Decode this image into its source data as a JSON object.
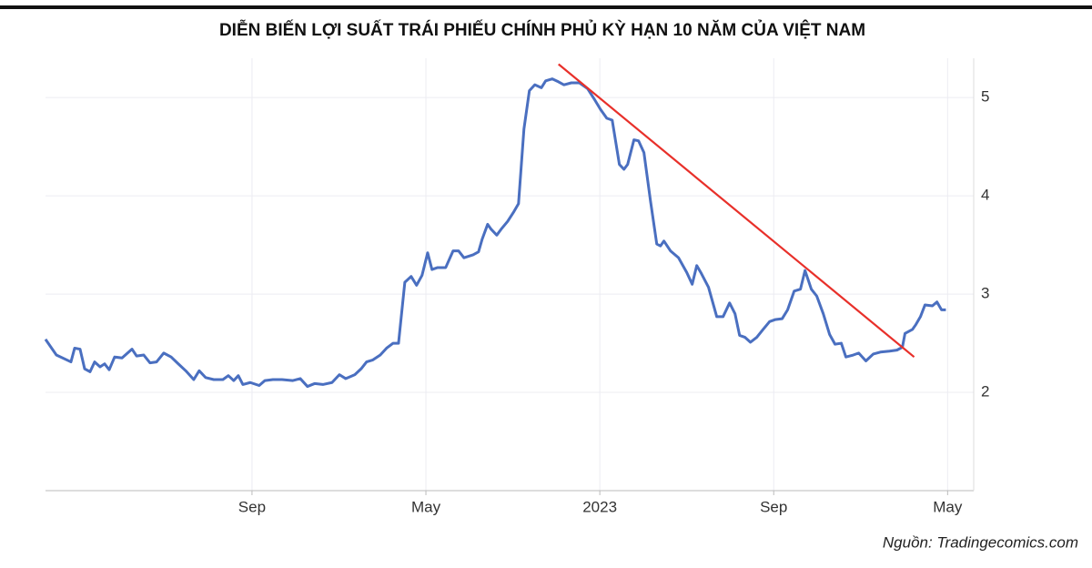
{
  "chart_data": {
    "type": "line",
    "title": "DIỄN BIẾN LỢI SUẤT TRÁI PHIẾU CHÍNH PHỦ KỲ HẠN 10 NĂM CỦA VIỆT NAM",
    "source": "Nguồn: Tradingecomics.com",
    "x": [
      -9.5,
      -9.0,
      -8.33,
      -8.16,
      -7.91,
      -7.7,
      -7.45,
      -7.24,
      -6.99,
      -6.78,
      -6.57,
      -6.32,
      -5.98,
      -5.52,
      -5.31,
      -4.98,
      -4.69,
      -4.39,
      -4.06,
      -3.72,
      -3.39,
      -3.05,
      -2.68,
      -2.43,
      -2.13,
      -1.76,
      -1.34,
      -1.09,
      -0.84,
      -0.63,
      -0.42,
      -0.08,
      0.33,
      0.59,
      0.96,
      1.38,
      1.88,
      2.22,
      2.55,
      2.89,
      3.26,
      3.68,
      4.02,
      4.31,
      4.73,
      5.02,
      5.27,
      5.56,
      5.9,
      6.19,
      6.49,
      6.74,
      7.03,
      7.32,
      7.57,
      7.82,
      8.08,
      8.28,
      8.54,
      8.91,
      9.25,
      9.5,
      9.75,
      10.17,
      10.42,
      10.59,
      10.84,
      11.0,
      11.26,
      11.46,
      11.76,
      12.05,
      12.26,
      12.51,
      12.76,
      13.01,
      13.31,
      13.51,
      13.81,
      14.1,
      14.35,
      14.69,
      15.06,
      15.44,
      15.73,
      16.03,
      16.32,
      16.57,
      16.9,
      17.11,
      17.28,
      17.57,
      17.78,
      18.03,
      18.33,
      18.62,
      18.79,
      18.95,
      19.25,
      19.62,
      20.0,
      20.25,
      20.46,
      20.67,
      21.0,
      21.38,
      21.67,
      21.97,
      22.22,
      22.43,
      22.68,
      22.93,
      23.22,
      23.51,
      23.81,
      24.06,
      24.39,
      24.64,
      24.94,
      25.23,
      25.44,
      25.73,
      25.98,
      26.28,
      26.57,
      26.82,
      27.11,
      27.32,
      27.66,
      27.91,
      28.24,
      28.58,
      28.91,
      29.33,
      29.67,
      29.92,
      30.04,
      30.38,
      30.54,
      30.75,
      30.96,
      31.3,
      31.51,
      31.72,
      31.92
    ],
    "series": [
      {
        "color": "#4a6fc0",
        "values": [
          2.54,
          2.38,
          2.31,
          2.45,
          2.44,
          2.24,
          2.21,
          2.31,
          2.26,
          2.29,
          2.23,
          2.36,
          2.35,
          2.44,
          2.37,
          2.38,
          2.3,
          2.31,
          2.4,
          2.36,
          2.29,
          2.22,
          2.13,
          2.22,
          2.15,
          2.13,
          2.13,
          2.17,
          2.12,
          2.17,
          2.08,
          2.1,
          2.07,
          2.12,
          2.13,
          2.13,
          2.12,
          2.14,
          2.06,
          2.09,
          2.08,
          2.1,
          2.18,
          2.14,
          2.18,
          2.24,
          2.31,
          2.33,
          2.38,
          2.45,
          2.5,
          2.5,
          3.12,
          3.18,
          3.09,
          3.19,
          3.42,
          3.25,
          3.27,
          3.27,
          3.44,
          3.44,
          3.37,
          3.4,
          3.43,
          3.56,
          3.71,
          3.66,
          3.6,
          3.66,
          3.74,
          3.84,
          3.92,
          4.68,
          5.07,
          5.13,
          5.1,
          5.17,
          5.19,
          5.16,
          5.13,
          5.15,
          5.15,
          5.09,
          4.99,
          4.88,
          4.79,
          4.77,
          4.32,
          4.27,
          4.32,
          4.57,
          4.56,
          4.44,
          3.95,
          3.51,
          3.49,
          3.54,
          3.44,
          3.37,
          3.22,
          3.1,
          3.29,
          3.21,
          3.07,
          2.77,
          2.77,
          2.91,
          2.8,
          2.58,
          2.56,
          2.51,
          2.56,
          2.64,
          2.72,
          2.74,
          2.75,
          2.84,
          3.03,
          3.05,
          3.24,
          3.05,
          2.98,
          2.8,
          2.59,
          2.49,
          2.5,
          2.36,
          2.38,
          2.4,
          2.32,
          2.39,
          2.41,
          2.42,
          2.43,
          2.46,
          2.6,
          2.64,
          2.69,
          2.77,
          2.89,
          2.88,
          2.92,
          2.84,
          2.84
        ]
      }
    ],
    "trend_line": {
      "x": [
        14.1,
        30.46
      ],
      "values": [
        5.34,
        2.36
      ],
      "color": "#e8302a"
    },
    "xlim": [
      -9.5,
      33.2
    ],
    "xticks": [
      {
        "value": 0,
        "label": "Sep"
      },
      {
        "value": 8,
        "label": "May"
      },
      {
        "value": 16,
        "label": "2023"
      },
      {
        "value": 24,
        "label": "Sep"
      },
      {
        "value": 32,
        "label": "May"
      }
    ],
    "ylim": [
      1,
      5.4
    ],
    "yticks": [
      2,
      3,
      4,
      5
    ],
    "grid": true
  }
}
